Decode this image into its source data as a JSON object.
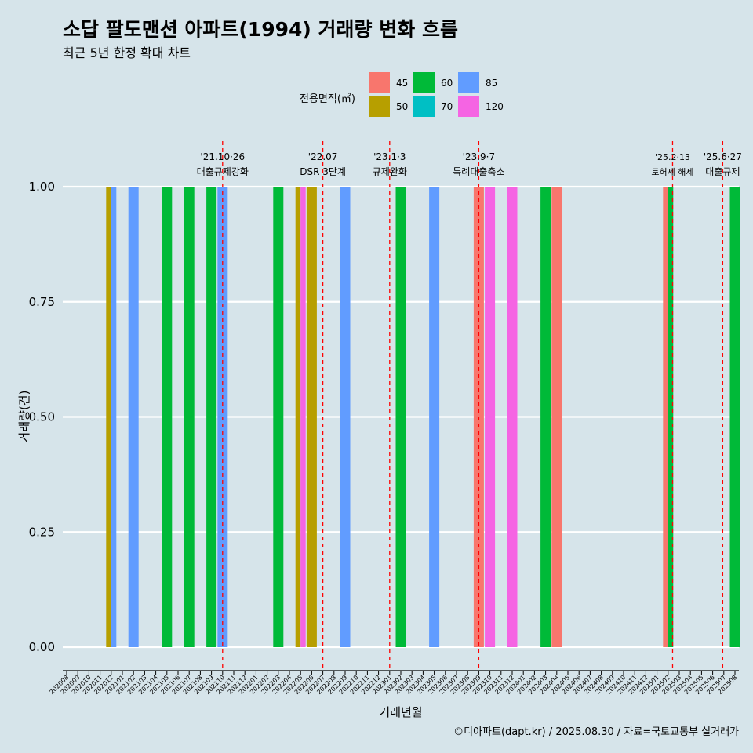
{
  "title": "소답 팔도맨션 아파트(1994) 거래량 변화 흐름",
  "subtitle": "최근 5년 한정 확대 차트",
  "caption": "©디아파트(dapt.kr) / 2025.08.30 / 자료=국토교통부 실거래가",
  "legend": {
    "title": "전용면적(㎡)",
    "items": [
      {
        "label": "45",
        "color": "#f8766d"
      },
      {
        "label": "50",
        "color": "#b79f00"
      },
      {
        "label": "60",
        "color": "#00ba38"
      },
      {
        "label": "70",
        "color": "#00bfc4"
      },
      {
        "label": "85",
        "color": "#619cff"
      },
      {
        "label": "120",
        "color": "#f564e3"
      }
    ]
  },
  "chart_data": {
    "type": "bar",
    "xlabel": "거래년월",
    "ylabel": "거래량(건)",
    "ylim": [
      0,
      1
    ],
    "yticks": [
      "0.00",
      "0.25",
      "0.50",
      "0.75",
      "1.00"
    ],
    "categories": [
      "202008",
      "202009",
      "202010",
      "202011",
      "202012",
      "202101",
      "202102",
      "202103",
      "202104",
      "202105",
      "202106",
      "202107",
      "202108",
      "202109",
      "202110",
      "202111",
      "202112",
      "202201",
      "202202",
      "202203",
      "202204",
      "202205",
      "202206",
      "202207",
      "202208",
      "202209",
      "202210",
      "202211",
      "202212",
      "202301",
      "202302",
      "202303",
      "202304",
      "202305",
      "202306",
      "202307",
      "202308",
      "202309",
      "202310",
      "202311",
      "202312",
      "202401",
      "202402",
      "202403",
      "202404",
      "202405",
      "202406",
      "202407",
      "202408",
      "202409",
      "202410",
      "202411",
      "202412",
      "202501",
      "202502",
      "202503",
      "202504",
      "202505",
      "202506",
      "202507",
      "202508"
    ],
    "bars": [
      {
        "month": "202012",
        "area": "50",
        "value": 1
      },
      {
        "month": "202012",
        "area": "85",
        "value": 1
      },
      {
        "month": "202102",
        "area": "85",
        "value": 1
      },
      {
        "month": "202105",
        "area": "60",
        "value": 1
      },
      {
        "month": "202107",
        "area": "60",
        "value": 1
      },
      {
        "month": "202109",
        "area": "60",
        "value": 1
      },
      {
        "month": "202110",
        "area": "85",
        "value": 1
      },
      {
        "month": "202203",
        "area": "60",
        "value": 1
      },
      {
        "month": "202205",
        "area": "50",
        "value": 1
      },
      {
        "month": "202205",
        "area": "120",
        "value": 1
      },
      {
        "month": "202206",
        "area": "50",
        "value": 1
      },
      {
        "month": "202209",
        "area": "85",
        "value": 1
      },
      {
        "month": "202302",
        "area": "60",
        "value": 1
      },
      {
        "month": "202305",
        "area": "85",
        "value": 1
      },
      {
        "month": "202309",
        "area": "45",
        "value": 1
      },
      {
        "month": "202310",
        "area": "120",
        "value": 1
      },
      {
        "month": "202312",
        "area": "120",
        "value": 1
      },
      {
        "month": "202403",
        "area": "60",
        "value": 1
      },
      {
        "month": "202404",
        "area": "45",
        "value": 1
      },
      {
        "month": "202502",
        "area": "45",
        "value": 1
      },
      {
        "month": "202502",
        "area": "60",
        "value": 1
      },
      {
        "month": "202508",
        "area": "60",
        "value": 1
      }
    ],
    "events": [
      {
        "month": 14.0,
        "date": "'21.10·26",
        "label": "대출규제강화"
      },
      {
        "month": 23.0,
        "date": "'22.07",
        "label": "DSR 3단계"
      },
      {
        "month": 29.0,
        "date": "'23.1·3",
        "label": "규제완화"
      },
      {
        "month": 37.0,
        "date": "'23.9·7",
        "label": "특례대출축소"
      },
      {
        "month": 54.4,
        "date": "'25.2·13",
        "label": "토허제 해제"
      },
      {
        "month": 58.9,
        "date": "'25.6·27",
        "label": "대출규제"
      }
    ]
  }
}
